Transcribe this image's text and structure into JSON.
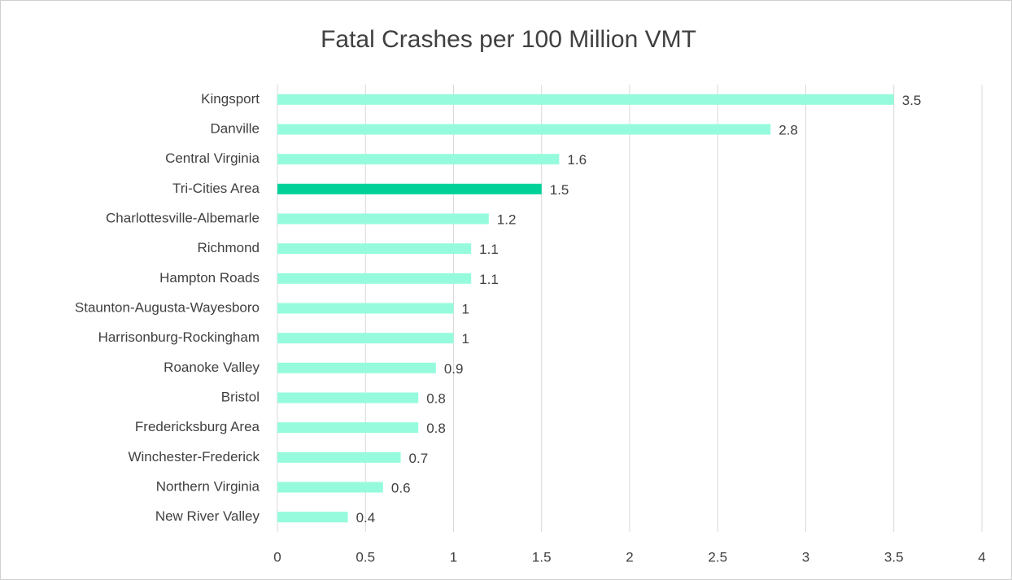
{
  "chart_data": {
    "type": "barh",
    "title": "Fatal Crashes per 100 Million VMT",
    "categories": [
      "Kingsport",
      "Danville",
      "Central Virginia",
      "Tri-Cities Area",
      "Charlottesville-Albemarle",
      "Richmond",
      "Hampton Roads",
      "Staunton-Augusta-Wayesboro",
      "Harrisonburg-Rockingham",
      "Roanoke Valley",
      "Bristol",
      "Fredericksburg Area",
      "Winchester-Frederick",
      "Northern Virginia",
      "New River Valley"
    ],
    "values": [
      3.5,
      2.8,
      1.6,
      1.5,
      1.2,
      1.1,
      1.1,
      1,
      1,
      0.9,
      0.8,
      0.8,
      0.7,
      0.6,
      0.4
    ],
    "colors": [
      "#96fbdc",
      "#96fbdc",
      "#96fbdc",
      "#00d199",
      "#96fbdc",
      "#96fbdc",
      "#96fbdc",
      "#96fbdc",
      "#96fbdc",
      "#96fbdc",
      "#96fbdc",
      "#96fbdc",
      "#96fbdc",
      "#96fbdc",
      "#96fbdc"
    ],
    "xlim": [
      0,
      4
    ],
    "xticks": [
      0,
      0.5,
      1,
      1.5,
      2,
      2.5,
      3,
      3.5,
      4
    ],
    "grid": true
  }
}
